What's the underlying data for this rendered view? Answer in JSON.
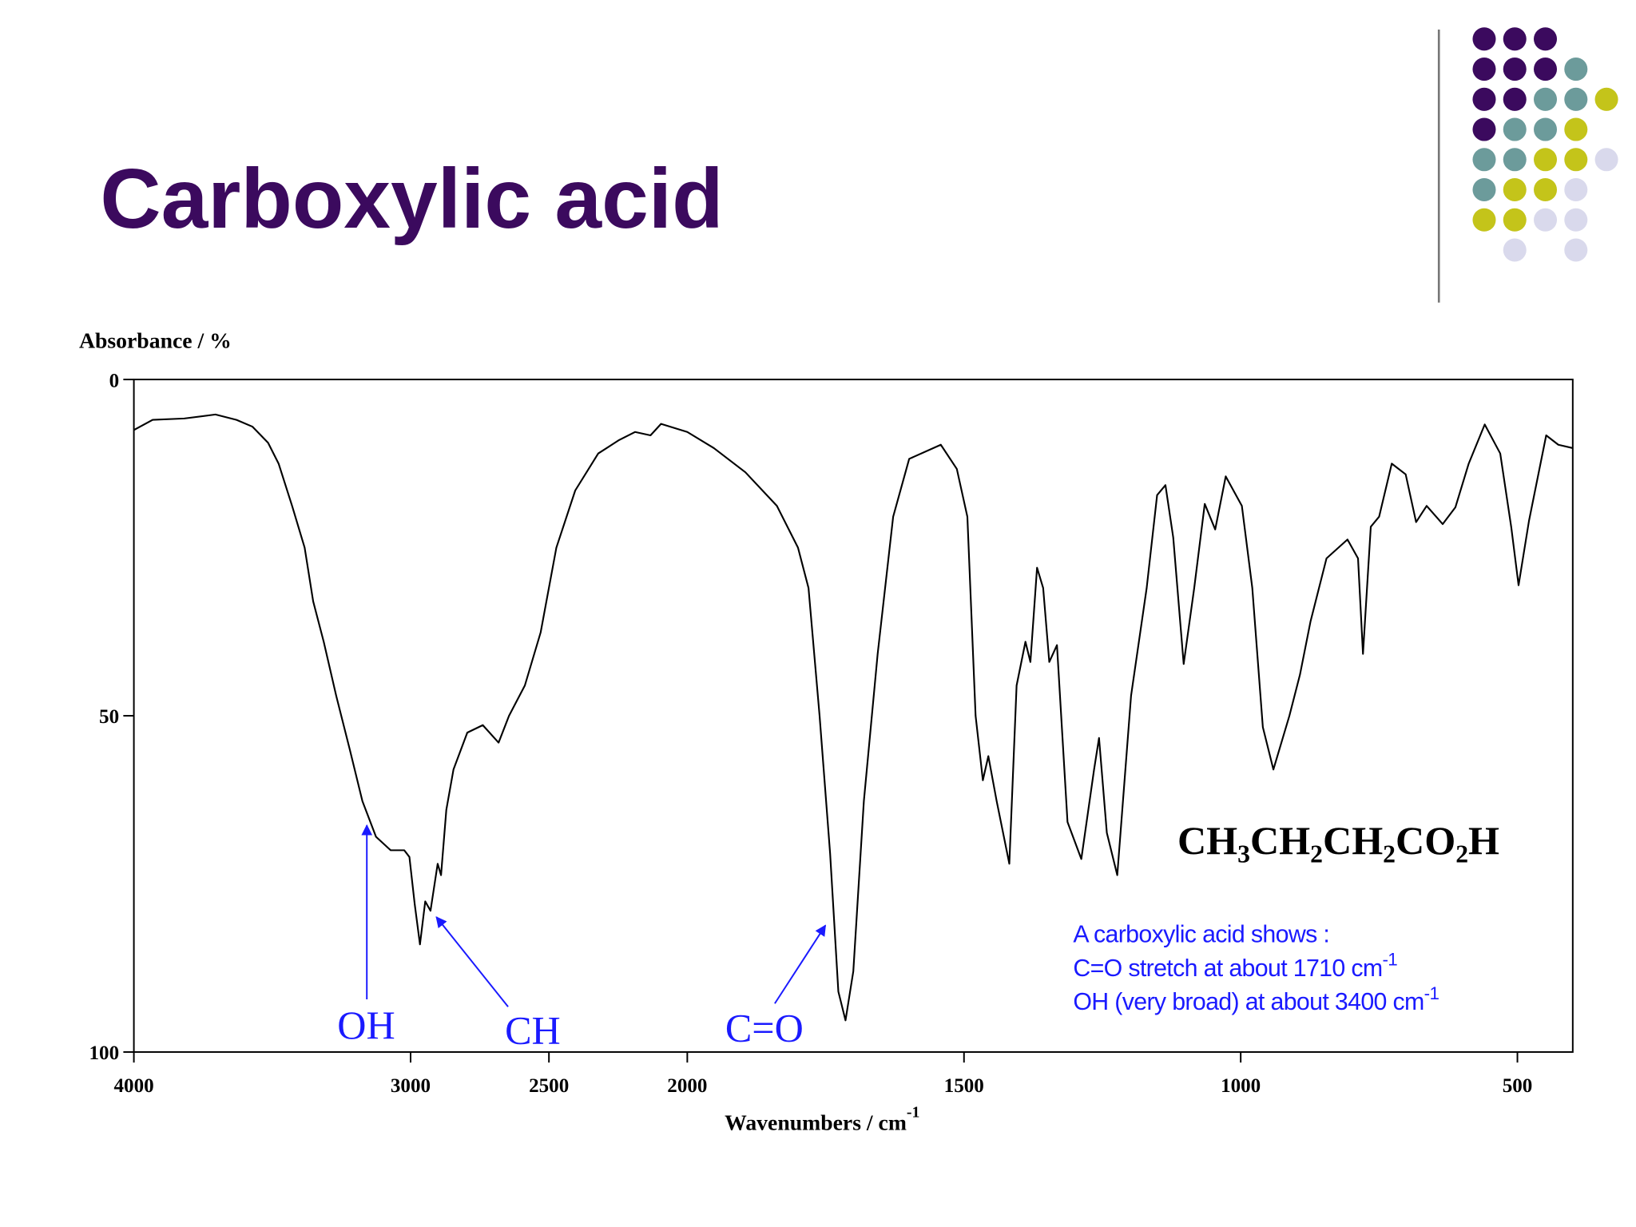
{
  "slide": {
    "title": "Carboxylic acid"
  },
  "chart_data": {
    "type": "line",
    "y_label": "Absorbance / %",
    "x_label": "Wavenumbers / cm",
    "x_label_sup": "-1",
    "xlim": [
      4000,
      400
    ],
    "x_scale_break": 2000,
    "x_scale_ratio": 2,
    "ylim": [
      100,
      0
    ],
    "xticks": [
      4000,
      3000,
      2500,
      2000,
      1500,
      1000,
      500
    ],
    "yticks": [
      0,
      50,
      100
    ],
    "color": "#000000",
    "x": [
      4000,
      3932,
      3818,
      3705,
      3629,
      3572,
      3515,
      3477,
      3428,
      3383,
      3352,
      3314,
      3269,
      3220,
      3174,
      3125,
      3072,
      3023,
      3004,
      2985,
      2966,
      2947,
      2928,
      2902,
      2890,
      2871,
      2845,
      2795,
      2739,
      2682,
      2644,
      2587,
      2530,
      2473,
      2405,
      2322,
      2246,
      2189,
      2133,
      2095,
      2000,
      1952,
      1895,
      1838,
      1800,
      1781,
      1761,
      1742,
      1727,
      1714,
      1700,
      1681,
      1656,
      1628,
      1599,
      1542,
      1513,
      1494,
      1479,
      1466,
      1456,
      1441,
      1418,
      1405,
      1389,
      1380,
      1368,
      1357,
      1346,
      1332,
      1313,
      1288,
      1265,
      1256,
      1242,
      1223,
      1198,
      1170,
      1151,
      1136,
      1122,
      1103,
      1084,
      1065,
      1046,
      1027,
      998,
      979,
      960,
      941,
      912,
      893,
      874,
      845,
      807,
      788,
      779,
      765,
      750,
      727,
      702,
      683,
      664,
      635,
      612,
      588,
      559,
      531,
      511,
      498,
      479,
      448,
      426,
      400
    ],
    "values": [
      7.5,
      6,
      5.8,
      5.2,
      6,
      7,
      9.4,
      12.5,
      18.8,
      25,
      33,
      39,
      47,
      55,
      62.7,
      68,
      70,
      70,
      71,
      78,
      84,
      77.6,
      79,
      72,
      73.7,
      64,
      58,
      52.5,
      51.4,
      54,
      50,
      45.5,
      37.6,
      25,
      16.5,
      11,
      9,
      7.8,
      8.3,
      6.6,
      7.8,
      10.2,
      13.8,
      18.8,
      25,
      31,
      50,
      70.5,
      91,
      95.3,
      88,
      62.7,
      40.8,
      20.4,
      11.8,
      9.7,
      13.3,
      20.4,
      50,
      59.6,
      56,
      62.7,
      72,
      45.5,
      39,
      42,
      28,
      31,
      42,
      39.5,
      65.8,
      71.3,
      58,
      53.3,
      67.4,
      73.7,
      47,
      31,
      17.2,
      15.7,
      23.5,
      42.3,
      31,
      18.5,
      22.3,
      14.4,
      18.8,
      31,
      51.7,
      58,
      50,
      43.9,
      36,
      26.6,
      23.8,
      26.6,
      40.8,
      21.9,
      20.4,
      12.5,
      14.1,
      21.2,
      18.8,
      21.5,
      19,
      12.5,
      6.7,
      11,
      22,
      30.6,
      21,
      8.3,
      9.7,
      10.2
    ],
    "annotations": [
      "OH",
      "CH",
      "C=O"
    ],
    "formula": [
      "CH",
      "3",
      "CH",
      "2",
      "CH",
      "2",
      "CO",
      "2",
      "H"
    ],
    "note_lines": [
      {
        "text": "A carboxylic acid shows :"
      },
      {
        "text": "C=O stretch at about 1710 cm",
        "sup": "-1"
      },
      {
        "text": "OH (very broad) at about 3400 cm",
        "sup": "-1"
      }
    ],
    "annotation_color": "#1a1aff"
  }
}
